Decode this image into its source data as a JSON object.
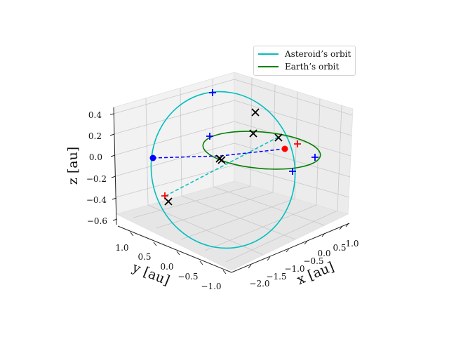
{
  "chart_data": {
    "type": "3d-line",
    "title": "",
    "xlabel": "x [au]",
    "ylabel": "y [au]",
    "zlabel": "z [au]",
    "x_ticks": [
      "−2.0",
      "−1.5",
      "−1.0",
      "−0.5",
      "0.0",
      "0.5",
      "1.0"
    ],
    "y_ticks": [
      "−1.0",
      "−0.5",
      "0.0",
      "0.5",
      "1.0"
    ],
    "z_ticks": [
      "−0.6",
      "−0.4",
      "−0.2",
      "0.0",
      "0.2",
      "0.4"
    ],
    "series": [
      {
        "name": "Asteroid’s orbit",
        "color": "#00bfbf",
        "style": "solid"
      },
      {
        "name": "Earth’s orbit",
        "color": "#008000",
        "style": "solid"
      }
    ],
    "legend_position": "upper right",
    "colors": {
      "asteroid": "#00bfbf",
      "earth": "#008000",
      "blue": "#0000ff",
      "red": "#ff0000",
      "black": "#000000"
    }
  }
}
